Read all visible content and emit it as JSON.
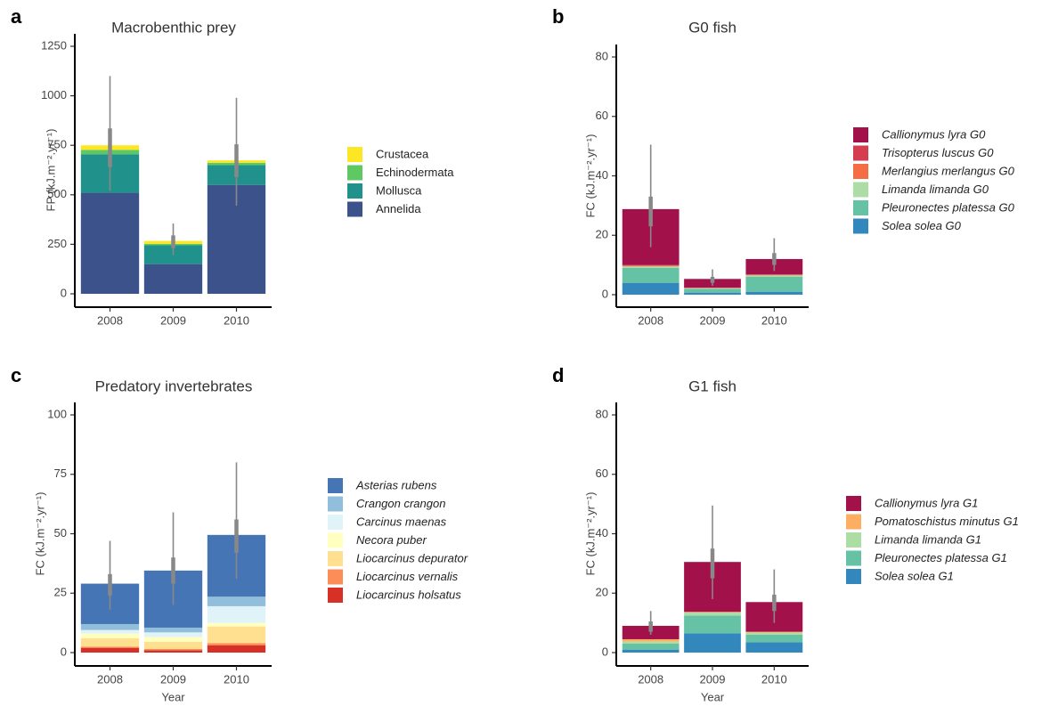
{
  "chart_data": [
    {
      "type": "bar",
      "stacked": true,
      "panel": "a",
      "title": "Macrobenthic prey",
      "ylabel": "FP (kJ.m⁻².yr⁻¹)",
      "legend_italic": false,
      "categories": [
        "2008",
        "2009",
        "2010"
      ],
      "ylim": [
        0,
        1250
      ],
      "yticks": [
        0,
        250,
        500,
        750,
        1000,
        1250
      ],
      "series": [
        {
          "name": "Crustacea",
          "color": "#FDE725",
          "values": [
            23,
            15,
            12
          ]
        },
        {
          "name": "Echinodermata",
          "color": "#5EC962",
          "values": [
            22,
            7,
            12
          ]
        },
        {
          "name": "Mollusca",
          "color": "#21918C",
          "values": [
            195,
            95,
            100
          ]
        },
        {
          "name": "Annelida",
          "color": "#3B528B",
          "values": [
            510,
            150,
            550
          ]
        }
      ],
      "errors": [
        {
          "low": 520,
          "high": 1100,
          "inner_low": 640,
          "inner_high": 835
        },
        {
          "low": 195,
          "high": 355,
          "inner_low": 230,
          "inner_high": 295
        },
        {
          "low": 445,
          "high": 990,
          "inner_low": 590,
          "inner_high": 755
        }
      ]
    },
    {
      "type": "bar",
      "stacked": true,
      "panel": "b",
      "title": "G0 fish",
      "ylabel": "FC (kJ.m⁻².yr⁻¹)",
      "legend_italic": true,
      "categories": [
        "2008",
        "2009",
        "2010"
      ],
      "ylim": [
        0,
        80
      ],
      "yticks": [
        0,
        20,
        40,
        60,
        80
      ],
      "series": [
        {
          "name": "Callionymus lyra G0",
          "color": "#A2114A",
          "values": [
            18.8,
            2.9,
            5.2
          ]
        },
        {
          "name": "Trisopterus luscus G0",
          "color": "#D53E4F",
          "values": [
            0.2,
            0.1,
            0.1
          ]
        },
        {
          "name": "Merlangius merlangus G0",
          "color": "#F46D43",
          "values": [
            0.3,
            0.1,
            0.2
          ]
        },
        {
          "name": "Limanda limanda G0",
          "color": "#ABDDA4",
          "values": [
            0.5,
            0.2,
            0.5
          ]
        },
        {
          "name": "Pleuronectes platessa G0",
          "color": "#66C2A5",
          "values": [
            5,
            1.3,
            5
          ]
        },
        {
          "name": "Solea solea G0",
          "color": "#3288BD",
          "values": [
            4,
            0.7,
            1
          ]
        }
      ],
      "errors": [
        {
          "low": 16,
          "high": 50.5,
          "inner_low": 23,
          "inner_high": 33
        },
        {
          "low": 3,
          "high": 8.5,
          "inner_low": 4,
          "inner_high": 6
        },
        {
          "low": 8,
          "high": 19,
          "inner_low": 10,
          "inner_high": 14
        }
      ]
    },
    {
      "type": "bar",
      "stacked": true,
      "panel": "c",
      "title": "Predatory invertebrates",
      "ylabel": "FC (kJ.m⁻².yr⁻¹)",
      "xlabel": "Year",
      "legend_italic": true,
      "categories": [
        "2008",
        "2009",
        "2010"
      ],
      "ylim": [
        0,
        100
      ],
      "yticks": [
        0,
        25,
        50,
        75,
        100
      ],
      "series": [
        {
          "name": "Asterias rubens",
          "color": "#4575B4",
          "values": [
            17,
            24,
            26
          ]
        },
        {
          "name": "Crangon crangon",
          "color": "#91BFDB",
          "values": [
            2.5,
            2,
            4
          ]
        },
        {
          "name": "Carcinus maenas",
          "color": "#E0F3F8",
          "values": [
            1.5,
            2,
            7
          ]
        },
        {
          "name": "Necora puber",
          "color": "#FFFFBF",
          "values": [
            2,
            2,
            1.5
          ]
        },
        {
          "name": "Liocarcinus depurator",
          "color": "#FEE090",
          "values": [
            3.5,
            3,
            7
          ]
        },
        {
          "name": "Liocarcinus vernalis",
          "color": "#FC8D59",
          "values": [
            0.5,
            0.5,
            1
          ]
        },
        {
          "name": "Liocarcinus holsatus",
          "color": "#D73027",
          "values": [
            2,
            1,
            3
          ]
        }
      ],
      "errors": [
        {
          "low": 18,
          "high": 47,
          "inner_low": 24,
          "inner_high": 33
        },
        {
          "low": 20,
          "high": 59,
          "inner_low": 29,
          "inner_high": 40
        },
        {
          "low": 31,
          "high": 80,
          "inner_low": 42,
          "inner_high": 56
        }
      ]
    },
    {
      "type": "bar",
      "stacked": true,
      "panel": "d",
      "title": "G1 fish",
      "ylabel": "FC (kJ.m⁻².yr⁻¹)",
      "xlabel": "Year",
      "legend_italic": true,
      "categories": [
        "2008",
        "2009",
        "2010"
      ],
      "ylim": [
        0,
        80
      ],
      "yticks": [
        0,
        20,
        40,
        60,
        80
      ],
      "series": [
        {
          "name": "Callionymus lyra G1",
          "color": "#A2114A",
          "values": [
            4.5,
            16.8,
            10
          ]
        },
        {
          "name": "Pomatoschistus minutus G1",
          "color": "#FDAE61",
          "values": [
            0.8,
            0.2,
            0.3
          ]
        },
        {
          "name": "Limanda limanda G1",
          "color": "#ABDDA4",
          "values": [
            0.7,
            1,
            0.7
          ]
        },
        {
          "name": "Pleuronectes platessa G1",
          "color": "#66C2A5",
          "values": [
            2,
            6,
            2.5
          ]
        },
        {
          "name": "Solea solea G1",
          "color": "#3288BD",
          "values": [
            1,
            6.5,
            3.5
          ]
        }
      ],
      "errors": [
        {
          "low": 6,
          "high": 14,
          "inner_low": 7,
          "inner_high": 10.5
        },
        {
          "low": 18,
          "high": 49.5,
          "inner_low": 25,
          "inner_high": 35
        },
        {
          "low": 10,
          "high": 28,
          "inner_low": 14,
          "inner_high": 19.5
        }
      ]
    }
  ]
}
